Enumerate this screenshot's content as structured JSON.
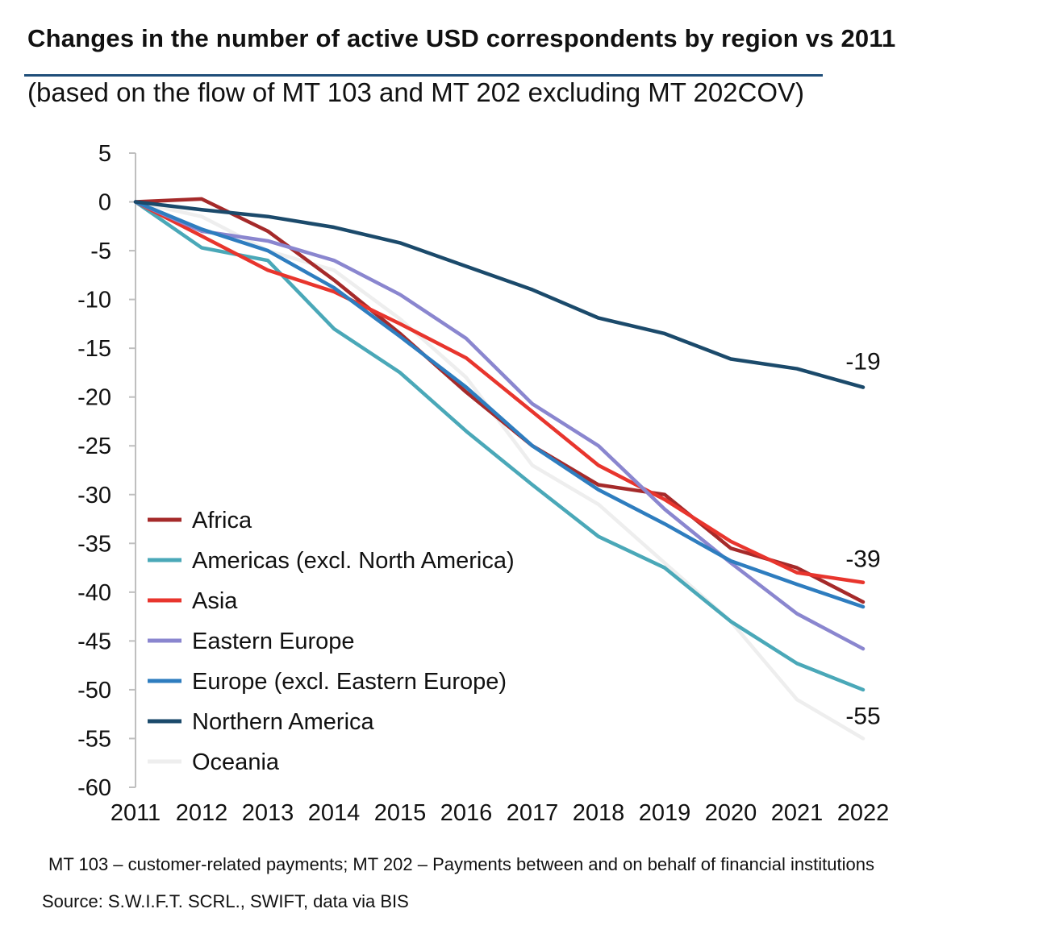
{
  "title": "Changes in the number of active USD correspondents by region vs 2011",
  "subtitle": "(based on the flow of MT 103 and MT 202 excluding MT 202COV)",
  "footnote": "MT 103 – customer-related payments; MT 202 – Payments between and on behalf of financial institutions",
  "source": "Source: S.W.I.F.T. SCRL., SWIFT, data via BIS",
  "chart_data": {
    "type": "line",
    "title": "Changes in the number of active USD correspondents by region vs 2011",
    "xlabel": "",
    "ylabel": "",
    "x": [
      "2011",
      "2012",
      "2013",
      "2014",
      "2015",
      "2016",
      "2017",
      "2018",
      "2019",
      "2020",
      "2021",
      "2022"
    ],
    "ylim": [
      -60,
      5
    ],
    "yticks": [
      5,
      0,
      -5,
      -10,
      -15,
      -20,
      -25,
      -30,
      -35,
      -40,
      -45,
      -50,
      -55,
      -60
    ],
    "grid": false,
    "legend_position": "bottom-left",
    "series": [
      {
        "name": "Oceania",
        "color": "#eeeeee",
        "values": [
          0,
          -1.5,
          -5,
          -7,
          -12,
          -18,
          -27,
          -31,
          -37,
          -43,
          -51,
          -55
        ]
      },
      {
        "name": "Africa",
        "color": "#a52a2a",
        "values": [
          0,
          0.3,
          -3,
          -8,
          -13.5,
          -19.5,
          -25,
          -29,
          -30,
          -35.5,
          -37.5,
          -41
        ]
      },
      {
        "name": "Americas (excl. North America)",
        "color": "#4aa8b8",
        "values": [
          0,
          -4.7,
          -6,
          -13,
          -17.5,
          -23.5,
          -29,
          -34.3,
          -37.5,
          -43,
          -47.3,
          -50
        ]
      },
      {
        "name": "Asia",
        "color": "#e8352d",
        "values": [
          0,
          -3.5,
          -7,
          -9.2,
          -12.5,
          -16,
          -21.5,
          -27,
          -30.5,
          -34.8,
          -38,
          -39
        ]
      },
      {
        "name": "Eastern Europe",
        "color": "#8a86cf",
        "values": [
          0,
          -3,
          -4,
          -6,
          -9.5,
          -14,
          -20.7,
          -25,
          -31.5,
          -37,
          -42.2,
          -45.8
        ]
      },
      {
        "name": "Europe (excl. Eastern Europe)",
        "color": "#2e7dbf",
        "values": [
          0,
          -2.8,
          -5,
          -8.8,
          -13.8,
          -19,
          -25,
          -29.5,
          -33,
          -36.8,
          -39.2,
          -41.5
        ]
      },
      {
        "name": "Northern America",
        "color": "#1b4a6b",
        "values": [
          0,
          -0.8,
          -1.5,
          -2.6,
          -4.2,
          -6.6,
          -9,
          -11.9,
          -13.5,
          -16.1,
          -17.1,
          -19
        ]
      }
    ],
    "legend_order": [
      "Africa",
      "Americas (excl. North America)",
      "Asia",
      "Eastern Europe",
      "Europe (excl. Eastern Europe)",
      "Northern America",
      "Oceania"
    ],
    "annotations": [
      {
        "text": "-19",
        "x": "2022",
        "y": -19
      },
      {
        "text": "-39",
        "x": "2022",
        "y": -39
      },
      {
        "text": "-55",
        "x": "2022",
        "y": -55
      }
    ]
  }
}
